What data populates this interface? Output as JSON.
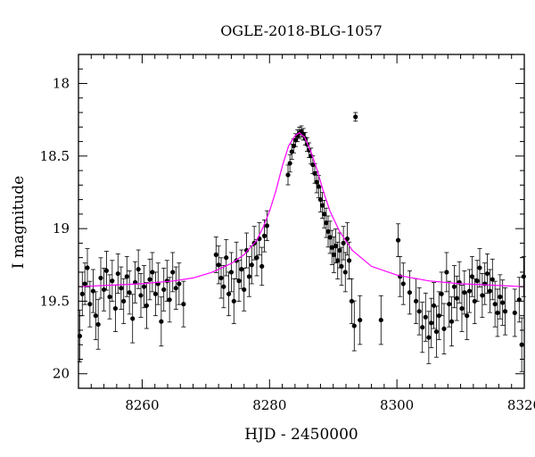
{
  "chart_data": {
    "type": "scatter",
    "title": "OGLE-2018-BLG-1057",
    "xlabel": "HJD - 2450000",
    "ylabel": "I magnitude",
    "xlim": [
      8250,
      8320
    ],
    "ylim": [
      20.1,
      17.8
    ],
    "y_inverted": true,
    "xticks": [
      8260,
      8280,
      8300,
      8320
    ],
    "yticks": [
      18,
      18.5,
      19,
      19.5,
      20
    ],
    "colors": {
      "points": "#000000",
      "model": "#ff00ff",
      "frame": "#000000"
    },
    "model": {
      "name": "",
      "type": "microlensing-fit",
      "baseline_mag": 19.39,
      "peak_mag": 18.34,
      "peak_time": 8284.7,
      "x": [
        8250,
        8255,
        8260,
        8265,
        8268,
        8271,
        8274,
        8276,
        8278,
        8279,
        8280,
        8281,
        8282,
        8283,
        8284,
        8284.7,
        8285.5,
        8286.5,
        8287.5,
        8288.5,
        8289.5,
        8291,
        8293,
        8296,
        8300,
        8305,
        8310,
        8315,
        8320
      ],
      "y": [
        19.4,
        19.39,
        19.38,
        19.36,
        19.34,
        19.3,
        19.24,
        19.18,
        19.08,
        18.99,
        18.88,
        18.74,
        18.57,
        18.43,
        18.36,
        18.34,
        18.37,
        18.47,
        18.6,
        18.75,
        18.88,
        19.02,
        19.15,
        19.26,
        19.32,
        19.36,
        19.38,
        19.39,
        19.4
      ]
    },
    "series": [
      {
        "name": "",
        "x": [
          8250.2,
          8250.6,
          8251.0,
          8251.4,
          8251.8,
          8252.3,
          8252.7,
          8253.1,
          8253.5,
          8254.0,
          8254.4,
          8254.9,
          8255.3,
          8255.8,
          8256.2,
          8256.7,
          8257.1,
          8257.6,
          8258.0,
          8258.5,
          8258.9,
          8259.4,
          8259.8,
          8260.3,
          8260.7,
          8261.2,
          8261.6,
          8262.1,
          8262.5,
          8263.0,
          8263.4,
          8263.9,
          8264.3,
          8264.8,
          8265.3,
          8265.8,
          8266.5,
          8271.6,
          8272.0,
          8272.4,
          8272.8,
          8273.2,
          8273.6,
          8274.0,
          8274.4,
          8274.8,
          8275.2,
          8275.6,
          8276.0,
          8276.4,
          8276.8,
          8277.2,
          8277.6,
          8278.0,
          8278.4,
          8278.8,
          8279.2,
          8279.6,
          8282.9,
          8283.2,
          8283.5,
          8283.8,
          8284.1,
          8284.4,
          8284.7,
          8285.0,
          8285.3,
          8285.6,
          8285.9,
          8286.2,
          8286.5,
          8286.8,
          8287.1,
          8287.4,
          8287.7,
          8288.0,
          8288.3,
          8288.6,
          8288.9,
          8289.2,
          8289.5,
          8289.8,
          8290.1,
          8290.4,
          8290.7,
          8291.0,
          8291.3,
          8291.6,
          8291.9,
          8292.2,
          8292.5,
          8292.9,
          8293.3,
          8294.2,
          8297.5,
          8300.2,
          8300.5,
          8301.0,
          8302.0,
          8303.0,
          8303.5,
          8304.0,
          8304.5,
          8305.0,
          8305.4,
          8305.8,
          8306.2,
          8306.6,
          8307.0,
          8307.4,
          8307.8,
          8308.2,
          8308.6,
          8309.0,
          8309.4,
          8309.8,
          8310.2,
          8310.6,
          8311.0,
          8311.4,
          8311.8,
          8312.2,
          8312.6,
          8313.0,
          8313.4,
          8313.8,
          8314.2,
          8314.6,
          8315.0,
          8315.4,
          8315.8,
          8316.2,
          8316.6,
          8317.0,
          8318.5,
          8319.2,
          8319.6,
          8319.9
        ],
        "y": [
          19.74,
          19.45,
          19.38,
          19.27,
          19.52,
          19.43,
          19.6,
          19.66,
          19.34,
          19.42,
          19.29,
          19.47,
          19.36,
          19.55,
          19.31,
          19.41,
          19.5,
          19.33,
          19.44,
          19.62,
          19.37,
          19.28,
          19.46,
          19.4,
          19.53,
          19.35,
          19.3,
          19.45,
          19.38,
          19.64,
          19.42,
          19.36,
          19.49,
          19.3,
          19.41,
          19.38,
          19.52,
          19.18,
          19.25,
          19.34,
          19.4,
          19.2,
          19.45,
          19.3,
          19.5,
          19.22,
          19.36,
          19.28,
          19.42,
          19.15,
          19.33,
          19.25,
          19.1,
          19.2,
          19.07,
          19.26,
          19.05,
          18.98,
          18.63,
          18.55,
          18.47,
          18.43,
          18.39,
          18.36,
          18.34,
          18.33,
          18.35,
          18.38,
          18.42,
          18.46,
          18.5,
          18.56,
          18.62,
          18.68,
          18.71,
          18.8,
          18.84,
          18.9,
          18.96,
          19.02,
          19.06,
          19.13,
          19.18,
          19.12,
          19.22,
          19.15,
          19.26,
          19.1,
          19.3,
          19.07,
          19.22,
          19.5,
          19.67,
          19.63,
          19.63,
          19.08,
          19.33,
          19.38,
          19.44,
          19.5,
          19.57,
          19.68,
          19.61,
          19.75,
          19.65,
          19.53,
          19.71,
          19.6,
          19.45,
          19.69,
          19.3,
          19.52,
          19.64,
          19.4,
          19.48,
          19.37,
          19.55,
          19.44,
          19.6,
          19.43,
          19.33,
          19.5,
          19.36,
          19.27,
          19.46,
          19.38,
          19.31,
          19.43,
          19.35,
          19.52,
          19.58,
          19.47,
          19.51,
          19.57,
          19.58,
          19.49,
          19.8,
          19.33
        ]
      },
      {
        "name": "",
        "x": [
          8293.5
        ],
        "y": [
          18.23
        ]
      }
    ],
    "grid": false,
    "legend": "none"
  }
}
